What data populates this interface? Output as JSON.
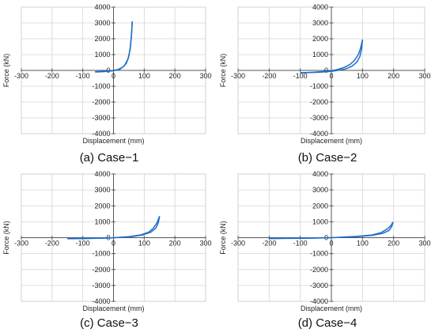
{
  "chart_data": [
    {
      "type": "line",
      "caption": "(a) Case−1",
      "xlabel": "Displacement (mm)",
      "ylabel": "Force (kN)",
      "xlim": [
        -300,
        300
      ],
      "ylim": [
        -4000,
        4000
      ],
      "xticks": [
        "-300",
        "-200",
        "-100",
        "0",
        "100",
        "200",
        "300"
      ],
      "yticks": [
        "4000",
        "3000",
        "2000",
        "1000",
        "0",
        "-1000",
        "-2000",
        "-3000",
        "-4000"
      ],
      "grid": true,
      "color": "#1f6fc5",
      "loading": [
        [
          -60,
          -80
        ],
        [
          -40,
          -60
        ],
        [
          -20,
          -30
        ],
        [
          0,
          0
        ],
        [
          15,
          60
        ],
        [
          30,
          200
        ],
        [
          42,
          450
        ],
        [
          50,
          900
        ],
        [
          55,
          1500
        ],
        [
          59,
          2300
        ],
        [
          61,
          3100
        ]
      ],
      "unloading": [
        [
          61,
          3100
        ],
        [
          58,
          2100
        ],
        [
          54,
          1300
        ],
        [
          47,
          700
        ],
        [
          35,
          280
        ],
        [
          20,
          60
        ],
        [
          0,
          -20
        ],
        [
          -20,
          -60
        ],
        [
          -40,
          -90
        ],
        [
          -60,
          -100
        ]
      ]
    },
    {
      "type": "line",
      "caption": "(b) Case−2",
      "xlabel": "Displacement (mm)",
      "ylabel": "Force (kN)",
      "xlim": [
        -300,
        300
      ],
      "ylim": [
        -4000,
        4000
      ],
      "xticks": [
        "-300",
        "-200",
        "-100",
        "0",
        "100",
        "200",
        "300"
      ],
      "yticks": [
        "4000",
        "3000",
        "2000",
        "1000",
        "0",
        "-1000",
        "-2000",
        "-3000",
        "-4000"
      ],
      "grid": true,
      "color": "#1f6fc5",
      "loading": [
        [
          -100,
          -150
        ],
        [
          -60,
          -120
        ],
        [
          -20,
          -60
        ],
        [
          0,
          -20
        ],
        [
          20,
          60
        ],
        [
          40,
          180
        ],
        [
          60,
          380
        ],
        [
          75,
          650
        ],
        [
          88,
          1050
        ],
        [
          95,
          1500
        ],
        [
          100,
          1950
        ]
      ],
      "unloading": [
        [
          100,
          1950
        ],
        [
          97,
          1350
        ],
        [
          92,
          900
        ],
        [
          82,
          520
        ],
        [
          65,
          250
        ],
        [
          45,
          90
        ],
        [
          20,
          0
        ],
        [
          0,
          -60
        ],
        [
          -40,
          -120
        ],
        [
          -100,
          -150
        ]
      ]
    },
    {
      "type": "line",
      "caption": "(c) Case−3",
      "xlabel": "Displacement (mm)",
      "ylabel": "Force (kN)",
      "xlim": [
        -300,
        300
      ],
      "ylim": [
        -4000,
        4000
      ],
      "xticks": [
        "-300",
        "-200",
        "-100",
        "0",
        "100",
        "200",
        "300"
      ],
      "yticks": [
        "4000",
        "3000",
        "2000",
        "1000",
        "0",
        "-1000",
        "-2000",
        "-3000",
        "-4000"
      ],
      "grid": true,
      "color": "#1f6fc5",
      "loading": [
        [
          -150,
          -60
        ],
        [
          -100,
          -40
        ],
        [
          -50,
          -15
        ],
        [
          0,
          0
        ],
        [
          50,
          60
        ],
        [
          90,
          180
        ],
        [
          115,
          350
        ],
        [
          130,
          600
        ],
        [
          142,
          950
        ],
        [
          150,
          1350
        ]
      ],
      "unloading": [
        [
          150,
          1350
        ],
        [
          146,
          950
        ],
        [
          138,
          600
        ],
        [
          122,
          350
        ],
        [
          95,
          170
        ],
        [
          60,
          70
        ],
        [
          20,
          10
        ],
        [
          -30,
          -30
        ],
        [
          -90,
          -55
        ],
        [
          -150,
          -65
        ]
      ]
    },
    {
      "type": "line",
      "caption": "(d) Case−4",
      "xlabel": "Displacement (mm)",
      "ylabel": "Force (kN)",
      "xlim": [
        -300,
        300
      ],
      "ylim": [
        -4000,
        4000
      ],
      "xticks": [
        "-300",
        "-200",
        "-100",
        "0",
        "100",
        "200",
        "300"
      ],
      "yticks": [
        "4000",
        "3000",
        "2000",
        "1000",
        "0",
        "-1000",
        "-2000",
        "-3000",
        "-4000"
      ],
      "grid": true,
      "color": "#1f6fc5",
      "loading": [
        [
          -200,
          -50
        ],
        [
          -150,
          -35
        ],
        [
          -100,
          -20
        ],
        [
          0,
          0
        ],
        [
          80,
          80
        ],
        [
          130,
          170
        ],
        [
          160,
          320
        ],
        [
          180,
          550
        ],
        [
          192,
          780
        ],
        [
          198,
          980
        ]
      ],
      "unloading": [
        [
          198,
          980
        ],
        [
          194,
          700
        ],
        [
          185,
          450
        ],
        [
          165,
          270
        ],
        [
          130,
          140
        ],
        [
          80,
          60
        ],
        [
          20,
          10
        ],
        [
          -60,
          -30
        ],
        [
          -140,
          -45
        ],
        [
          -200,
          -55
        ]
      ]
    }
  ]
}
